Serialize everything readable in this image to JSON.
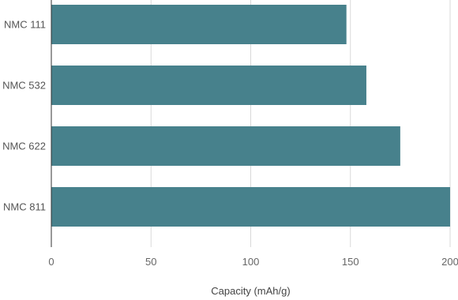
{
  "colors": {
    "bar": "#47818c",
    "grid": "#d9d9d9",
    "axis": "#333333"
  },
  "chart_data": {
    "type": "bar",
    "orientation": "horizontal",
    "categories": [
      "NMC 111",
      "NMC 532",
      "NMC 622",
      "NMC 811"
    ],
    "values": [
      148,
      158,
      175,
      200
    ],
    "title": "",
    "xlabel": "Capacity (mAh/g)",
    "ylabel": "",
    "xlim": [
      0,
      200
    ],
    "xticks": [
      0,
      50,
      100,
      150,
      200
    ],
    "grid": "vertical",
    "legend": "none"
  }
}
